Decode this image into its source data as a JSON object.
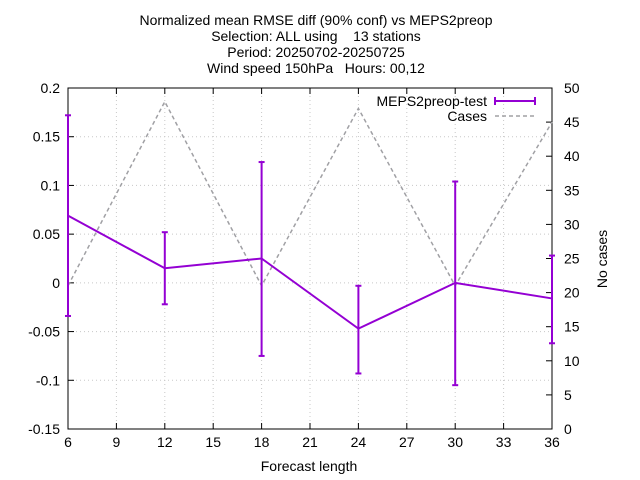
{
  "chart_data": {
    "type": "line",
    "title_lines": [
      "Normalized mean RMSE diff (90% conf) vs MEPS2preop",
      "Selection: ALL using    13 stations",
      "Period: 20250702-20250725",
      "Wind speed 150hPa   Hours: 00,12"
    ],
    "xlabel": "Forecast length",
    "ylabel": "",
    "y2label": "No cases",
    "xlim": [
      6,
      36
    ],
    "ylim": [
      -0.15,
      0.2
    ],
    "y2lim": [
      0,
      50
    ],
    "x_ticks": [
      6,
      9,
      12,
      15,
      18,
      21,
      24,
      27,
      30,
      33,
      36
    ],
    "x_tick_labels": [
      "6",
      "9",
      "12",
      "15",
      "18",
      "21",
      "24",
      "27",
      "30",
      "33",
      "36"
    ],
    "y_ticks": [
      -0.15,
      -0.1,
      -0.05,
      0,
      0.05,
      0.1,
      0.15,
      0.2
    ],
    "y_tick_labels": [
      "-0.15",
      "-0.1",
      "-0.05",
      "0",
      "0.05",
      "0.1",
      "0.15",
      "0.2"
    ],
    "y2_ticks": [
      0,
      5,
      10,
      15,
      20,
      25,
      30,
      35,
      40,
      45,
      50
    ],
    "y2_tick_labels": [
      "0",
      "5",
      "10",
      "15",
      "20",
      "25",
      "30",
      "35",
      "40",
      "45",
      "50"
    ],
    "grid": true,
    "legend_position": "top-right",
    "series": [
      {
        "name": "MEPS2preop-test",
        "color": "#9400d3",
        "axis": "y",
        "style": "line-with-errorbars",
        "x": [
          6,
          12,
          18,
          24,
          30,
          36
        ],
        "values": [
          0.069,
          0.015,
          0.025,
          -0.047,
          0.0,
          -0.016
        ],
        "err_low": [
          -0.034,
          -0.022,
          -0.075,
          -0.093,
          -0.105,
          -0.062
        ],
        "err_high": [
          0.172,
          0.052,
          0.124,
          -0.003,
          0.104,
          0.028
        ]
      },
      {
        "name": "Cases",
        "color": "#a0a0a4",
        "axis": "y2",
        "style": "dashed",
        "x": [
          6,
          12,
          18,
          24,
          30,
          36
        ],
        "values": [
          21,
          48,
          21,
          47,
          21,
          45
        ]
      }
    ]
  }
}
